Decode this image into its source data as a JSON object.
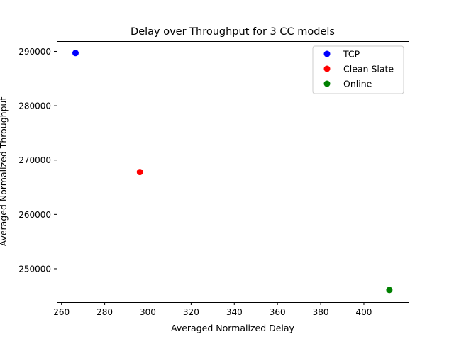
{
  "chart_data": {
    "type": "scatter",
    "title": "Delay over Throughput for 3 CC models",
    "xlabel": "Averaged Normalized Delay",
    "ylabel": "Averaged Normalized Throughput",
    "xlim": [
      257.8,
      420.7
    ],
    "ylim": [
      243861,
      291889
    ],
    "xticks": [
      260,
      280,
      300,
      320,
      340,
      360,
      380,
      400
    ],
    "yticks": [
      250000,
      260000,
      270000,
      280000,
      290000
    ],
    "grid": false,
    "legend_position": "top-right",
    "series": [
      {
        "name": "TCP",
        "color": "#0000ff",
        "points": [
          {
            "x": 266.5,
            "y": 289700
          }
        ]
      },
      {
        "name": "Clean Slate",
        "color": "#ff0000",
        "points": [
          {
            "x": 296.3,
            "y": 267800
          }
        ]
      },
      {
        "name": "Online",
        "color": "#008000",
        "points": [
          {
            "x": 411.8,
            "y": 246100
          }
        ]
      }
    ]
  }
}
